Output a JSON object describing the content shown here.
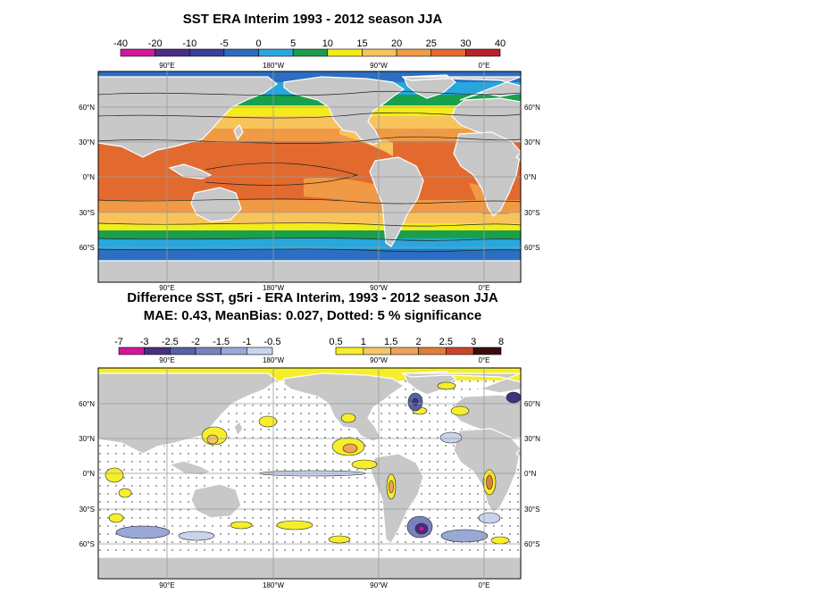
{
  "panel1": {
    "title": "SST ERA Interim 1993 - 2012 season JJA",
    "colorbar_labels": [
      "-40",
      "-20",
      "-10",
      "-5",
      "0",
      "5",
      "10",
      "15",
      "20",
      "25",
      "30",
      "40"
    ],
    "colorbar_colors": [
      "#d3179a",
      "#4b2a8a",
      "#3a3f9a",
      "#2b6cc0",
      "#29a8e0",
      "#1a9c4a",
      "#f2ec18",
      "#f7c45c",
      "#f19a45",
      "#e36a2e",
      "#b8212a"
    ],
    "top_lon_labels": [
      "90°E",
      "180°W",
      "90°W",
      "0°E"
    ],
    "bottom_lon_labels": [
      "90°E",
      "180°W",
      "90°W",
      "0°E"
    ],
    "lat_labels": [
      "60°N",
      "30°N",
      "0°N",
      "30°S",
      "60°S"
    ]
  },
  "panel2": {
    "title_line1": "Difference SST, g5ri - ERA Interim, 1993 - 2012 season JJA",
    "title_line2": "MAE: 0.43, MeanBias: 0.027, Dotted: 5 % significance",
    "neg_labels": [
      "-7",
      "-3",
      "-2.5",
      "-2",
      "-1.5",
      "-1",
      "-0.5"
    ],
    "neg_colors": [
      "#d3179a",
      "#45307f",
      "#5560a6",
      "#7a82bd",
      "#9aa8d6",
      "#c9d3ec"
    ],
    "pos_labels": [
      "0.5",
      "1",
      "1.5",
      "2",
      "2.5",
      "3",
      "8"
    ],
    "pos_colors": [
      "#f6ee2a",
      "#f6c766",
      "#efa257",
      "#e37d3c",
      "#c8472b",
      "#3a0d10"
    ],
    "top_lon_labels": [
      "90°E",
      "180°W",
      "90°W",
      "0°E"
    ],
    "bottom_lon_labels": [
      "90°E",
      "180°W",
      "90°W",
      "0°E"
    ],
    "lat_labels": [
      "60°N",
      "30°N",
      "0°N",
      "30°S",
      "60°S"
    ]
  }
}
